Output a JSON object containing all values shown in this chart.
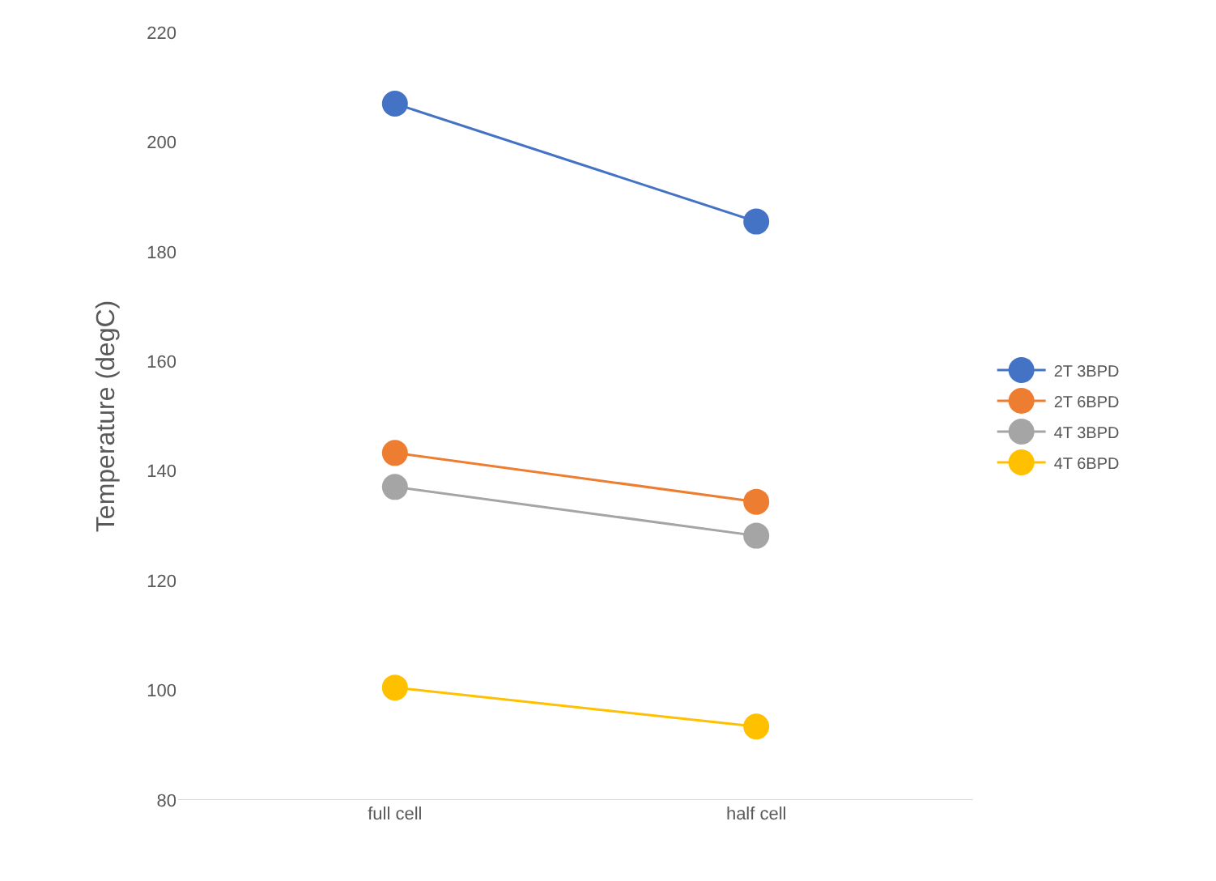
{
  "chart_data": {
    "type": "line",
    "ylabel": "Temperature (degC)",
    "categories": [
      "full cell",
      "half cell"
    ],
    "series": [
      {
        "name": "2T 3BPD",
        "color": "#4472c4",
        "values": [
          207,
          185.5
        ]
      },
      {
        "name": "2T 6BPD",
        "color": "#ed7d31",
        "values": [
          143.3,
          134.4
        ]
      },
      {
        "name": "4T 3BPD",
        "color": "#a5a5a5",
        "values": [
          137.1,
          128.2
        ]
      },
      {
        "name": "4T 6BPD",
        "color": "#ffc000",
        "values": [
          100.5,
          93.4
        ]
      }
    ],
    "ylim": [
      80,
      220
    ],
    "yticks": [
      80,
      100,
      120,
      140,
      160,
      180,
      200,
      220
    ],
    "grid": false,
    "legend": "right",
    "marker": "circle",
    "line_style": "solid"
  }
}
